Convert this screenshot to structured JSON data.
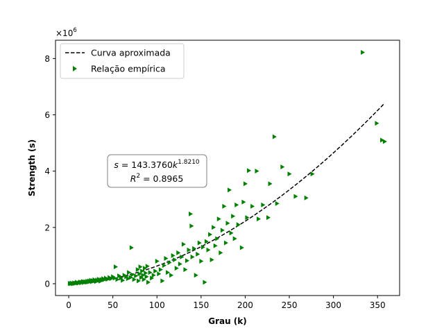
{
  "chart_data": {
    "type": "scatter",
    "xlabel": "Grau (k)",
    "ylabel": "Strength (s)",
    "y_multiplier_label": "×10^6",
    "xlim": [
      -15,
      375
    ],
    "ylim": [
      -0.42,
      8.65
    ],
    "y_unit_scale": 1000000,
    "xticks": [
      0,
      50,
      100,
      150,
      200,
      250,
      300,
      350
    ],
    "yticks": [
      0,
      2,
      4,
      6,
      8
    ],
    "grid": false,
    "legend_position": "top-left",
    "legend": [
      {
        "label": "Curva aproximada",
        "kind": "line",
        "style": "dashed",
        "color": "#000000"
      },
      {
        "label": "Relação empírica",
        "kind": "marker",
        "marker": "triangle-right",
        "color": "#008000"
      }
    ],
    "annotation": {
      "line1": "s = 143.3760k^1.8210",
      "line2": "R^2 = 0.8965",
      "position": "center-left"
    },
    "fit": {
      "coefficient": 143.376,
      "exponent": 1.821,
      "x_range": [
        1,
        358
      ]
    },
    "series": [
      {
        "name": "Relação empírica",
        "color": "#008000",
        "marker": "triangle-right",
        "points": [
          [
            1,
            0.01
          ],
          [
            2,
            0.0
          ],
          [
            3,
            0.02
          ],
          [
            4,
            0.01
          ],
          [
            5,
            0.0
          ],
          [
            6,
            0.03
          ],
          [
            7,
            0.01
          ],
          [
            8,
            0.02
          ],
          [
            9,
            0.05
          ],
          [
            10,
            0.03
          ],
          [
            11,
            0.02
          ],
          [
            12,
            0.04
          ],
          [
            13,
            0.06
          ],
          [
            14,
            0.03
          ],
          [
            15,
            0.05
          ],
          [
            16,
            0.08
          ],
          [
            17,
            0.04
          ],
          [
            18,
            0.06
          ],
          [
            19,
            0.07
          ],
          [
            20,
            0.05
          ],
          [
            21,
            0.09
          ],
          [
            22,
            0.06
          ],
          [
            23,
            0.1
          ],
          [
            24,
            0.08
          ],
          [
            25,
            0.12
          ],
          [
            26,
            0.07
          ],
          [
            27,
            0.11
          ],
          [
            28,
            0.09
          ],
          [
            29,
            0.14
          ],
          [
            30,
            0.1
          ],
          [
            31,
            0.08
          ],
          [
            32,
            0.13
          ],
          [
            33,
            0.11
          ],
          [
            34,
            0.16
          ],
          [
            35,
            0.12
          ],
          [
            36,
            0.09
          ],
          [
            37,
            0.15
          ],
          [
            38,
            0.13
          ],
          [
            39,
            0.18
          ],
          [
            40,
            0.14
          ],
          [
            42,
            0.2
          ],
          [
            44,
            0.16
          ],
          [
            46,
            0.22
          ],
          [
            48,
            0.18
          ],
          [
            50,
            0.25
          ],
          [
            52,
            0.2
          ],
          [
            53,
            0.6
          ],
          [
            55,
            0.15
          ],
          [
            57,
            0.28
          ],
          [
            59,
            0.2
          ],
          [
            61,
            0.12
          ],
          [
            63,
            0.3
          ],
          [
            65,
            0.25
          ],
          [
            67,
            0.18
          ],
          [
            68,
            0.4
          ],
          [
            70,
            0.22
          ],
          [
            71,
            1.28
          ],
          [
            72,
            0.32
          ],
          [
            74,
            0.15
          ],
          [
            76,
            0.28
          ],
          [
            78,
            0.5
          ],
          [
            79,
            0.1
          ],
          [
            80,
            0.35
          ],
          [
            81,
            0.6
          ],
          [
            82,
            0.22
          ],
          [
            83,
            0.45
          ],
          [
            84,
            0.3
          ],
          [
            85,
            0.15
          ],
          [
            86,
            0.55
          ],
          [
            87,
            0.38
          ],
          [
            88,
            0.25
          ],
          [
            89,
            0.62
          ],
          [
            90,
            0.05
          ],
          [
            92,
            0.4
          ],
          [
            94,
            0.2
          ],
          [
            96,
            0.3
          ],
          [
            98,
            0.45
          ],
          [
            100,
            0.8
          ],
          [
            102,
            0.35
          ],
          [
            104,
            0.5
          ],
          [
            106,
            0.1
          ],
          [
            108,
            0.65
          ],
          [
            110,
            0.9
          ],
          [
            112,
            0.4
          ],
          [
            114,
            0.75
          ],
          [
            116,
            0.3
          ],
          [
            118,
            1.0
          ],
          [
            120,
            0.85
          ],
          [
            122,
            0.55
          ],
          [
            124,
            1.1
          ],
          [
            126,
            0.7
          ],
          [
            128,
            0.95
          ],
          [
            130,
            1.4
          ],
          [
            132,
            0.5
          ],
          [
            134,
            0.82
          ],
          [
            136,
            1.2
          ],
          [
            138,
            2.48
          ],
          [
            139,
            2.05
          ],
          [
            140,
            0.95
          ],
          [
            142,
            1.25
          ],
          [
            144,
            0.3
          ],
          [
            146,
            1.05
          ],
          [
            148,
            1.45
          ],
          [
            150,
            0.8
          ],
          [
            152,
            1.3
          ],
          [
            154,
            0.05
          ],
          [
            156,
            1.5
          ],
          [
            158,
            1.2
          ],
          [
            160,
            1.75
          ],
          [
            162,
            0.85
          ],
          [
            164,
            2.0
          ],
          [
            166,
            1.35
          ],
          [
            168,
            1.6
          ],
          [
            170,
            2.3
          ],
          [
            172,
            1.1
          ],
          [
            174,
            1.9
          ],
          [
            176,
            2.75
          ],
          [
            178,
            1.45
          ],
          [
            180,
            2.15
          ],
          [
            182,
            3.33
          ],
          [
            184,
            1.8
          ],
          [
            186,
            2.4
          ],
          [
            188,
            1.6
          ],
          [
            190,
            2.8
          ],
          [
            192,
            2.1
          ],
          [
            196,
            1.28
          ],
          [
            198,
            2.9
          ],
          [
            200,
            3.55
          ],
          [
            202,
            2.35
          ],
          [
            204,
            4.02
          ],
          [
            208,
            2.75
          ],
          [
            213,
            4.0
          ],
          [
            215,
            2.3
          ],
          [
            220,
            2.8
          ],
          [
            226,
            2.35
          ],
          [
            228,
            3.55
          ],
          [
            233,
            5.22
          ],
          [
            236,
            2.85
          ],
          [
            242,
            4.15
          ],
          [
            250,
            3.9
          ],
          [
            257,
            3.1
          ],
          [
            269,
            3.05
          ],
          [
            276,
            3.9
          ],
          [
            333,
            8.22
          ],
          [
            349,
            5.7
          ],
          [
            355,
            5.1
          ],
          [
            358,
            5.05
          ]
        ]
      }
    ]
  }
}
